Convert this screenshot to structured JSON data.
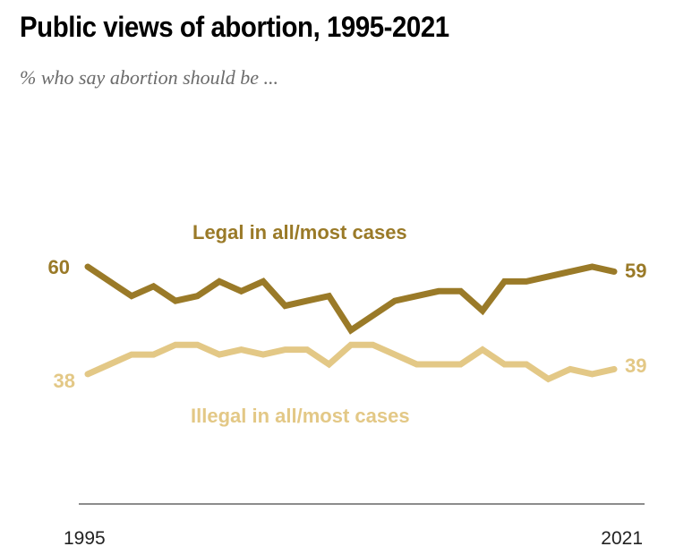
{
  "header": {
    "title": "Public views of abortion, 1995-2021",
    "subtitle": "% who say abortion should be ..."
  },
  "colors": {
    "legal": "#9a7a28",
    "illegal": "#e3c886",
    "axis": "#8c8c8c",
    "tick_text": "#222222"
  },
  "chart_data": {
    "type": "line",
    "title": "Public views of abortion, 1995-2021",
    "subtitle": "% who say abortion should be ...",
    "xlabel": "",
    "ylabel": "",
    "x_tick_labels": [
      "1995",
      "2021"
    ],
    "xlim": [
      1995,
      2021
    ],
    "ylim": [
      30,
      70
    ],
    "grid": false,
    "legend": "inline",
    "x_index": [
      0,
      1,
      2,
      3,
      4,
      5,
      6,
      7,
      8,
      9,
      10,
      11,
      12,
      13,
      14,
      15,
      16,
      17,
      18,
      19,
      20,
      21,
      22,
      23,
      24
    ],
    "series": [
      {
        "name": "Legal in all/most cases",
        "key": "legal",
        "values": [
          60,
          57,
          54,
          56,
          53,
          54,
          57,
          55,
          57,
          52,
          53,
          54,
          47,
          50,
          53,
          54,
          55,
          55,
          51,
          57,
          57,
          58,
          59,
          60,
          59
        ],
        "start_label": "60",
        "end_label": "59"
      },
      {
        "name": "Illegal in all/most cases",
        "key": "illegal",
        "values": [
          38,
          40,
          42,
          42,
          44,
          44,
          42,
          43,
          42,
          43,
          43,
          40,
          44,
          44,
          42,
          40,
          40,
          40,
          43,
          40,
          40,
          37,
          39,
          38,
          39
        ],
        "start_label": "38",
        "end_label": "39"
      }
    ]
  }
}
